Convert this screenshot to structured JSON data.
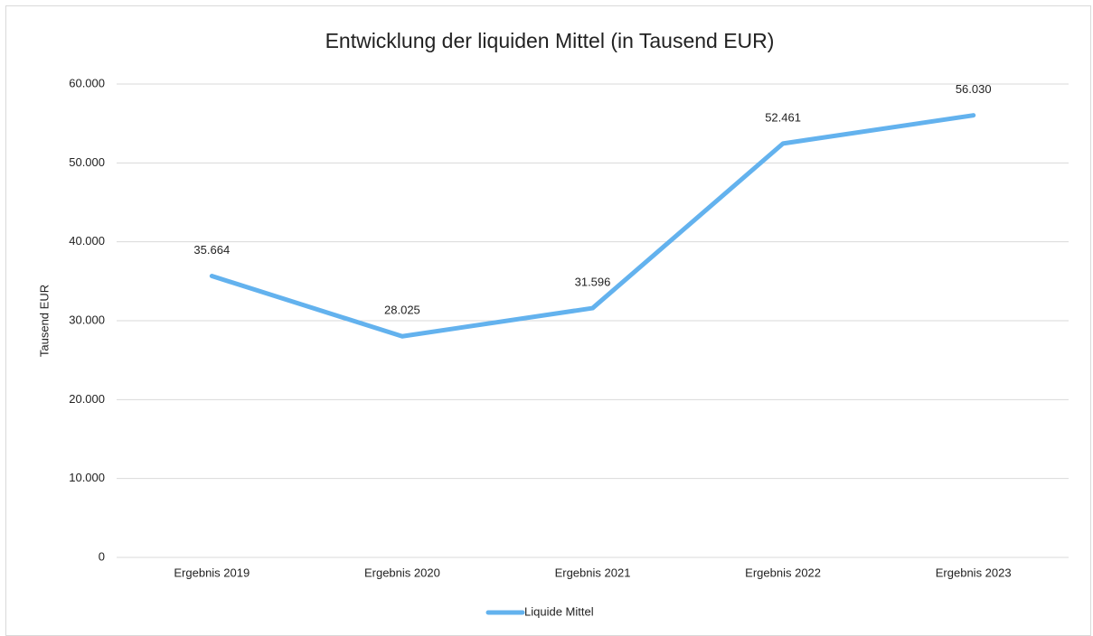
{
  "chart_data": {
    "type": "line",
    "title": "Entwicklung der liquiden Mittel (in Tausend EUR)",
    "y_label": "Tausend EUR",
    "categories": [
      "Ergebnis 2019",
      "Ergebnis 2020",
      "Ergebnis 2021",
      "Ergebnis 2022",
      "Ergebnis 2023"
    ],
    "series": [
      {
        "name": "Liquide Mittel",
        "color": "#63b2ee",
        "values": [
          35664,
          28025,
          31596,
          52461,
          56030
        ],
        "value_labels": [
          "35.664",
          "28.025",
          "31.596",
          "52.461",
          "56.030"
        ]
      }
    ],
    "ylim": [
      0,
      60000
    ],
    "yticks": [
      0,
      {
        "value": 10000,
        "label": "10.000"
      },
      {
        "value": 20000,
        "label": "20.000"
      },
      {
        "value": 30000,
        "label": "30.000"
      },
      {
        "value": 40000,
        "label": "40.000"
      },
      {
        "value": 50000,
        "label": "50.000"
      },
      {
        "value": 60000,
        "label": "60.000"
      }
    ],
    "grid": true,
    "legend": "bottom"
  }
}
